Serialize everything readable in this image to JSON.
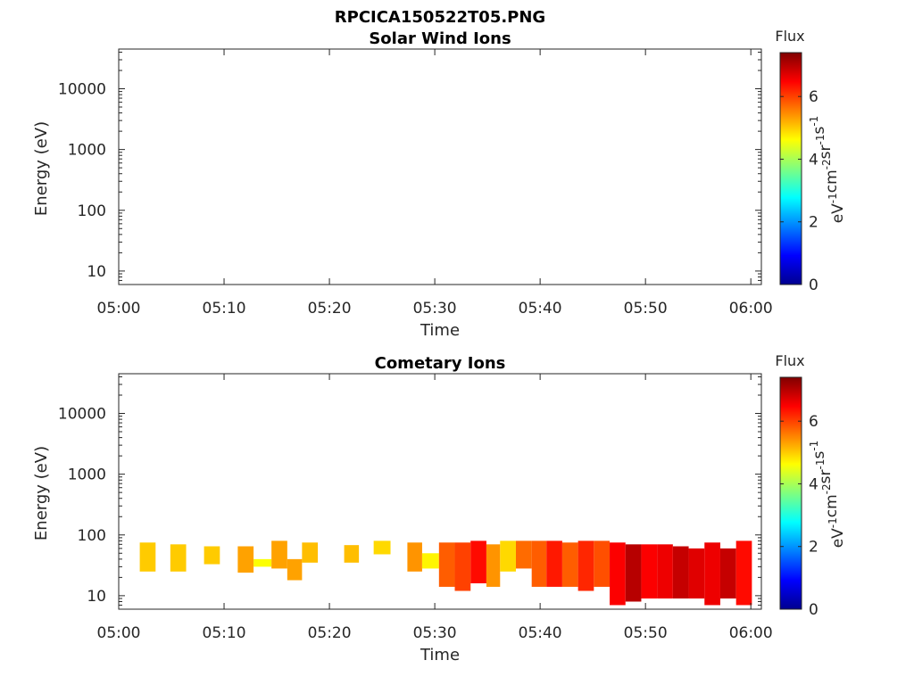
{
  "figure": {
    "filename_title": "RPCICA150522T05.PNG",
    "xlabel": "Time",
    "x_tick_labels": [
      "05:00",
      "05:10",
      "05:20",
      "05:30",
      "05:40",
      "05:50",
      "06:00"
    ],
    "y_tick_labels": [
      "10",
      "100",
      "1000",
      "10000"
    ],
    "colorbar_title": "Flux",
    "colorbar_ticks": [
      "0",
      "2",
      "4",
      "6"
    ]
  },
  "chart_data": [
    {
      "type": "heatmap",
      "title": "Solar Wind Ions",
      "xlabel": "Time",
      "ylabel": "Energy (eV)",
      "y_scale": "log",
      "ylim": [
        6,
        45000
      ],
      "xlim": [
        "05:00",
        "06:01"
      ],
      "colorbar": {
        "label": "Flux",
        "unit": "eV-1cm-2sr-1s-1",
        "range": [
          0,
          7.4
        ],
        "ticks": [
          0,
          2,
          4,
          6
        ],
        "colormap": "jet"
      },
      "cells": []
    },
    {
      "type": "heatmap",
      "title": "Cometary Ions",
      "xlabel": "Time",
      "ylabel": "Energy (eV)",
      "y_scale": "log",
      "ylim": [
        6,
        45000
      ],
      "xlim": [
        "05:00",
        "06:01"
      ],
      "colorbar": {
        "label": "Flux",
        "unit": "eV-1cm-2sr-1s-1",
        "range": [
          0,
          7.4
        ],
        "ticks": [
          0,
          2,
          4,
          6
        ],
        "colormap": "jet"
      },
      "cells": [
        {
          "t0": 2.0,
          "t1": 3.5,
          "e0": 25,
          "e1": 75,
          "flux": 5.0
        },
        {
          "t0": 4.9,
          "t1": 6.4,
          "e0": 25,
          "e1": 70,
          "flux": 5.0
        },
        {
          "t0": 8.1,
          "t1": 9.6,
          "e0": 33,
          "e1": 65,
          "flux": 5.0
        },
        {
          "t0": 11.3,
          "t1": 12.8,
          "e0": 24,
          "e1": 65,
          "flux": 5.3
        },
        {
          "t0": 12.8,
          "t1": 14.5,
          "e0": 30,
          "e1": 40,
          "flux": 4.6
        },
        {
          "t0": 14.5,
          "t1": 16.0,
          "e0": 28,
          "e1": 80,
          "flux": 5.3
        },
        {
          "t0": 16.0,
          "t1": 17.4,
          "e0": 18,
          "e1": 40,
          "flux": 5.3
        },
        {
          "t0": 17.4,
          "t1": 18.9,
          "e0": 35,
          "e1": 75,
          "flux": 5.1
        },
        {
          "t0": 21.4,
          "t1": 22.8,
          "e0": 35,
          "e1": 68,
          "flux": 5.1
        },
        {
          "t0": 24.2,
          "t1": 25.8,
          "e0": 48,
          "e1": 80,
          "flux": 4.9
        },
        {
          "t0": 27.4,
          "t1": 28.8,
          "e0": 25,
          "e1": 75,
          "flux": 5.4
        },
        {
          "t0": 28.8,
          "t1": 30.4,
          "e0": 28,
          "e1": 50,
          "flux": 4.7
        },
        {
          "t0": 30.4,
          "t1": 31.9,
          "e0": 14,
          "e1": 75,
          "flux": 5.8
        },
        {
          "t0": 31.9,
          "t1": 33.4,
          "e0": 12,
          "e1": 75,
          "flux": 6.0
        },
        {
          "t0": 33.4,
          "t1": 34.9,
          "e0": 16,
          "e1": 80,
          "flux": 6.4
        },
        {
          "t0": 34.9,
          "t1": 36.2,
          "e0": 14,
          "e1": 70,
          "flux": 5.4
        },
        {
          "t0": 36.2,
          "t1": 37.7,
          "e0": 25,
          "e1": 80,
          "flux": 4.9
        },
        {
          "t0": 37.7,
          "t1": 39.2,
          "e0": 28,
          "e1": 80,
          "flux": 5.7
        },
        {
          "t0": 39.2,
          "t1": 40.6,
          "e0": 14,
          "e1": 80,
          "flux": 5.8
        },
        {
          "t0": 40.6,
          "t1": 42.1,
          "e0": 14,
          "e1": 80,
          "flux": 6.3
        },
        {
          "t0": 42.1,
          "t1": 43.6,
          "e0": 14,
          "e1": 75,
          "flux": 5.8
        },
        {
          "t0": 43.6,
          "t1": 45.1,
          "e0": 12,
          "e1": 80,
          "flux": 6.2
        },
        {
          "t0": 45.1,
          "t1": 46.6,
          "e0": 14,
          "e1": 80,
          "flux": 5.9
        },
        {
          "t0": 46.6,
          "t1": 48.1,
          "e0": 7,
          "e1": 75,
          "flux": 6.5
        },
        {
          "t0": 48.1,
          "t1": 49.6,
          "e0": 8,
          "e1": 70,
          "flux": 7.0
        },
        {
          "t0": 49.6,
          "t1": 51.1,
          "e0": 9,
          "e1": 70,
          "flux": 6.5
        },
        {
          "t0": 51.1,
          "t1": 52.6,
          "e0": 9,
          "e1": 70,
          "flux": 6.6
        },
        {
          "t0": 52.6,
          "t1": 54.1,
          "e0": 9,
          "e1": 65,
          "flux": 6.9
        },
        {
          "t0": 54.1,
          "t1": 55.6,
          "e0": 9,
          "e1": 60,
          "flux": 6.7
        },
        {
          "t0": 55.6,
          "t1": 57.1,
          "e0": 7,
          "e1": 75,
          "flux": 6.6
        },
        {
          "t0": 57.1,
          "t1": 58.6,
          "e0": 9,
          "e1": 60,
          "flux": 6.9
        },
        {
          "t0": 58.6,
          "t1": 60.1,
          "e0": 7,
          "e1": 80,
          "flux": 6.4
        }
      ]
    }
  ]
}
